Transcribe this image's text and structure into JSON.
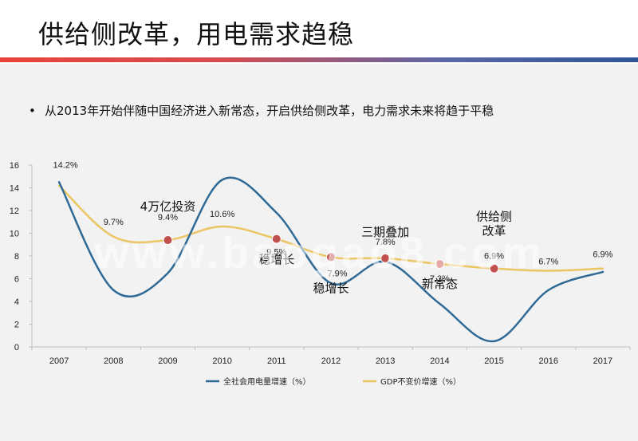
{
  "slide": {
    "title": "供给侧改革，用电需求趋稳",
    "bullet": "从2013年开始伴随中国经济进入新常态，开启供给侧改革，电力需求未来将趋于平稳",
    "bullet_marker": "•"
  },
  "watermark": "www.baogao8.com",
  "colors": {
    "electricity": "#2f6a97",
    "gdp": "#ecc564",
    "marker_red": "#c0504d",
    "marker_pink": "#e6a9a6",
    "title_rule_red": "#e9443a",
    "title_rule_blue": "#2f5597"
  },
  "chart_data": {
    "type": "line",
    "categories": [
      "2007",
      "2008",
      "2009",
      "2010",
      "2011",
      "2012",
      "2013",
      "2014",
      "2015",
      "2016",
      "2017"
    ],
    "ylim": [
      0,
      16
    ],
    "yticks": [
      0,
      2,
      4,
      6,
      8,
      10,
      12,
      14,
      16
    ],
    "grid": false,
    "legend_position": "bottom",
    "series": [
      {
        "name": "全社会用电量增速（%）",
        "color": "#2f6a97",
        "smooth": true,
        "values": [
          14.5,
          5.0,
          6.5,
          14.7,
          11.8,
          5.6,
          7.5,
          3.8,
          0.5,
          5.0,
          6.6
        ]
      },
      {
        "name": "GDP不变价增速（%）",
        "color": "#ecc564",
        "smooth": true,
        "values": [
          14.2,
          9.7,
          9.4,
          10.6,
          9.5,
          7.9,
          7.8,
          7.3,
          6.9,
          6.7,
          6.9
        ]
      }
    ],
    "gdp_labels": [
      "14.2%",
      "9.7%",
      "9.4%",
      "10.6%",
      "9.5%",
      "7.9%",
      "7.8%",
      "7.3%",
      "6.9%",
      "6.7%",
      "6.9%"
    ],
    "markers": [
      {
        "category": "2009",
        "value": 9.4,
        "style": "red"
      },
      {
        "category": "2011",
        "value": 9.5,
        "style": "red"
      },
      {
        "category": "2012",
        "value": 7.9,
        "style": "red"
      },
      {
        "category": "2013",
        "value": 7.8,
        "style": "red"
      },
      {
        "category": "2014",
        "value": 7.3,
        "style": "pink"
      },
      {
        "category": "2015",
        "value": 6.9,
        "style": "red"
      }
    ],
    "annotations": [
      {
        "text": "4万亿投资",
        "category": "2009"
      },
      {
        "text": "稳增长",
        "category": "2011"
      },
      {
        "text": "稳增长",
        "category": "2012"
      },
      {
        "text": "三期叠加",
        "category": "2013"
      },
      {
        "text": "新常态",
        "category": "2014"
      },
      {
        "text": "供给侧",
        "category": "2015"
      },
      {
        "text": "改革",
        "category": "2015"
      }
    ]
  }
}
